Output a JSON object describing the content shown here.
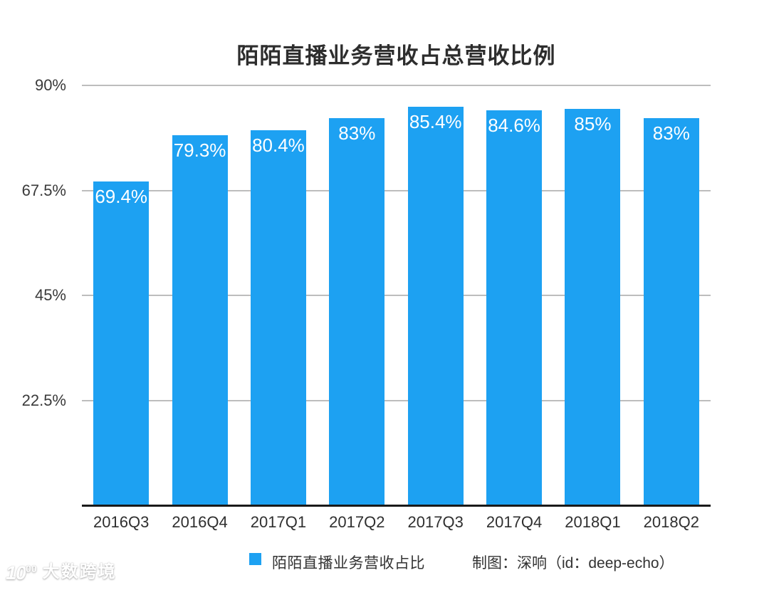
{
  "title": "陌陌直播业务营收占总营收比例",
  "chart_data": {
    "type": "bar",
    "title": "陌陌直播业务营收占总营收比例",
    "categories": [
      "2016Q3",
      "2016Q4",
      "2017Q1",
      "2017Q2",
      "2017Q3",
      "2017Q4",
      "2018Q1",
      "2018Q2"
    ],
    "values": [
      69.4,
      79.3,
      80.4,
      83,
      85.4,
      84.6,
      85,
      83
    ],
    "value_labels": [
      "69.4%",
      "79.3%",
      "80.4%",
      "83%",
      "85.4%",
      "84.6%",
      "85%",
      "83%"
    ],
    "xlabel": "",
    "ylabel": "",
    "ylim": [
      0,
      90
    ],
    "yticks": [
      {
        "value": 90,
        "label": "90%"
      },
      {
        "value": 67.5,
        "label": "67.5%"
      },
      {
        "value": 45,
        "label": "45%"
      },
      {
        "value": 22.5,
        "label": "22.5%"
      }
    ],
    "grid": true,
    "legend_position": "bottom",
    "bar_color": "#1da1f2",
    "grid_color": "#bdbdbd",
    "axis_color": "#1a1a1a",
    "value_label_color": "#ffffff"
  },
  "legend": {
    "series_label": "陌陌直播业务营收占比",
    "swatch_color": "#1da1f2"
  },
  "credit": "制图：深响（id：deep-echo）",
  "watermark": {
    "logo": "10^100-googol-logo",
    "logo_text": "10",
    "logo_sup": "00",
    "text": "大数跨境"
  }
}
